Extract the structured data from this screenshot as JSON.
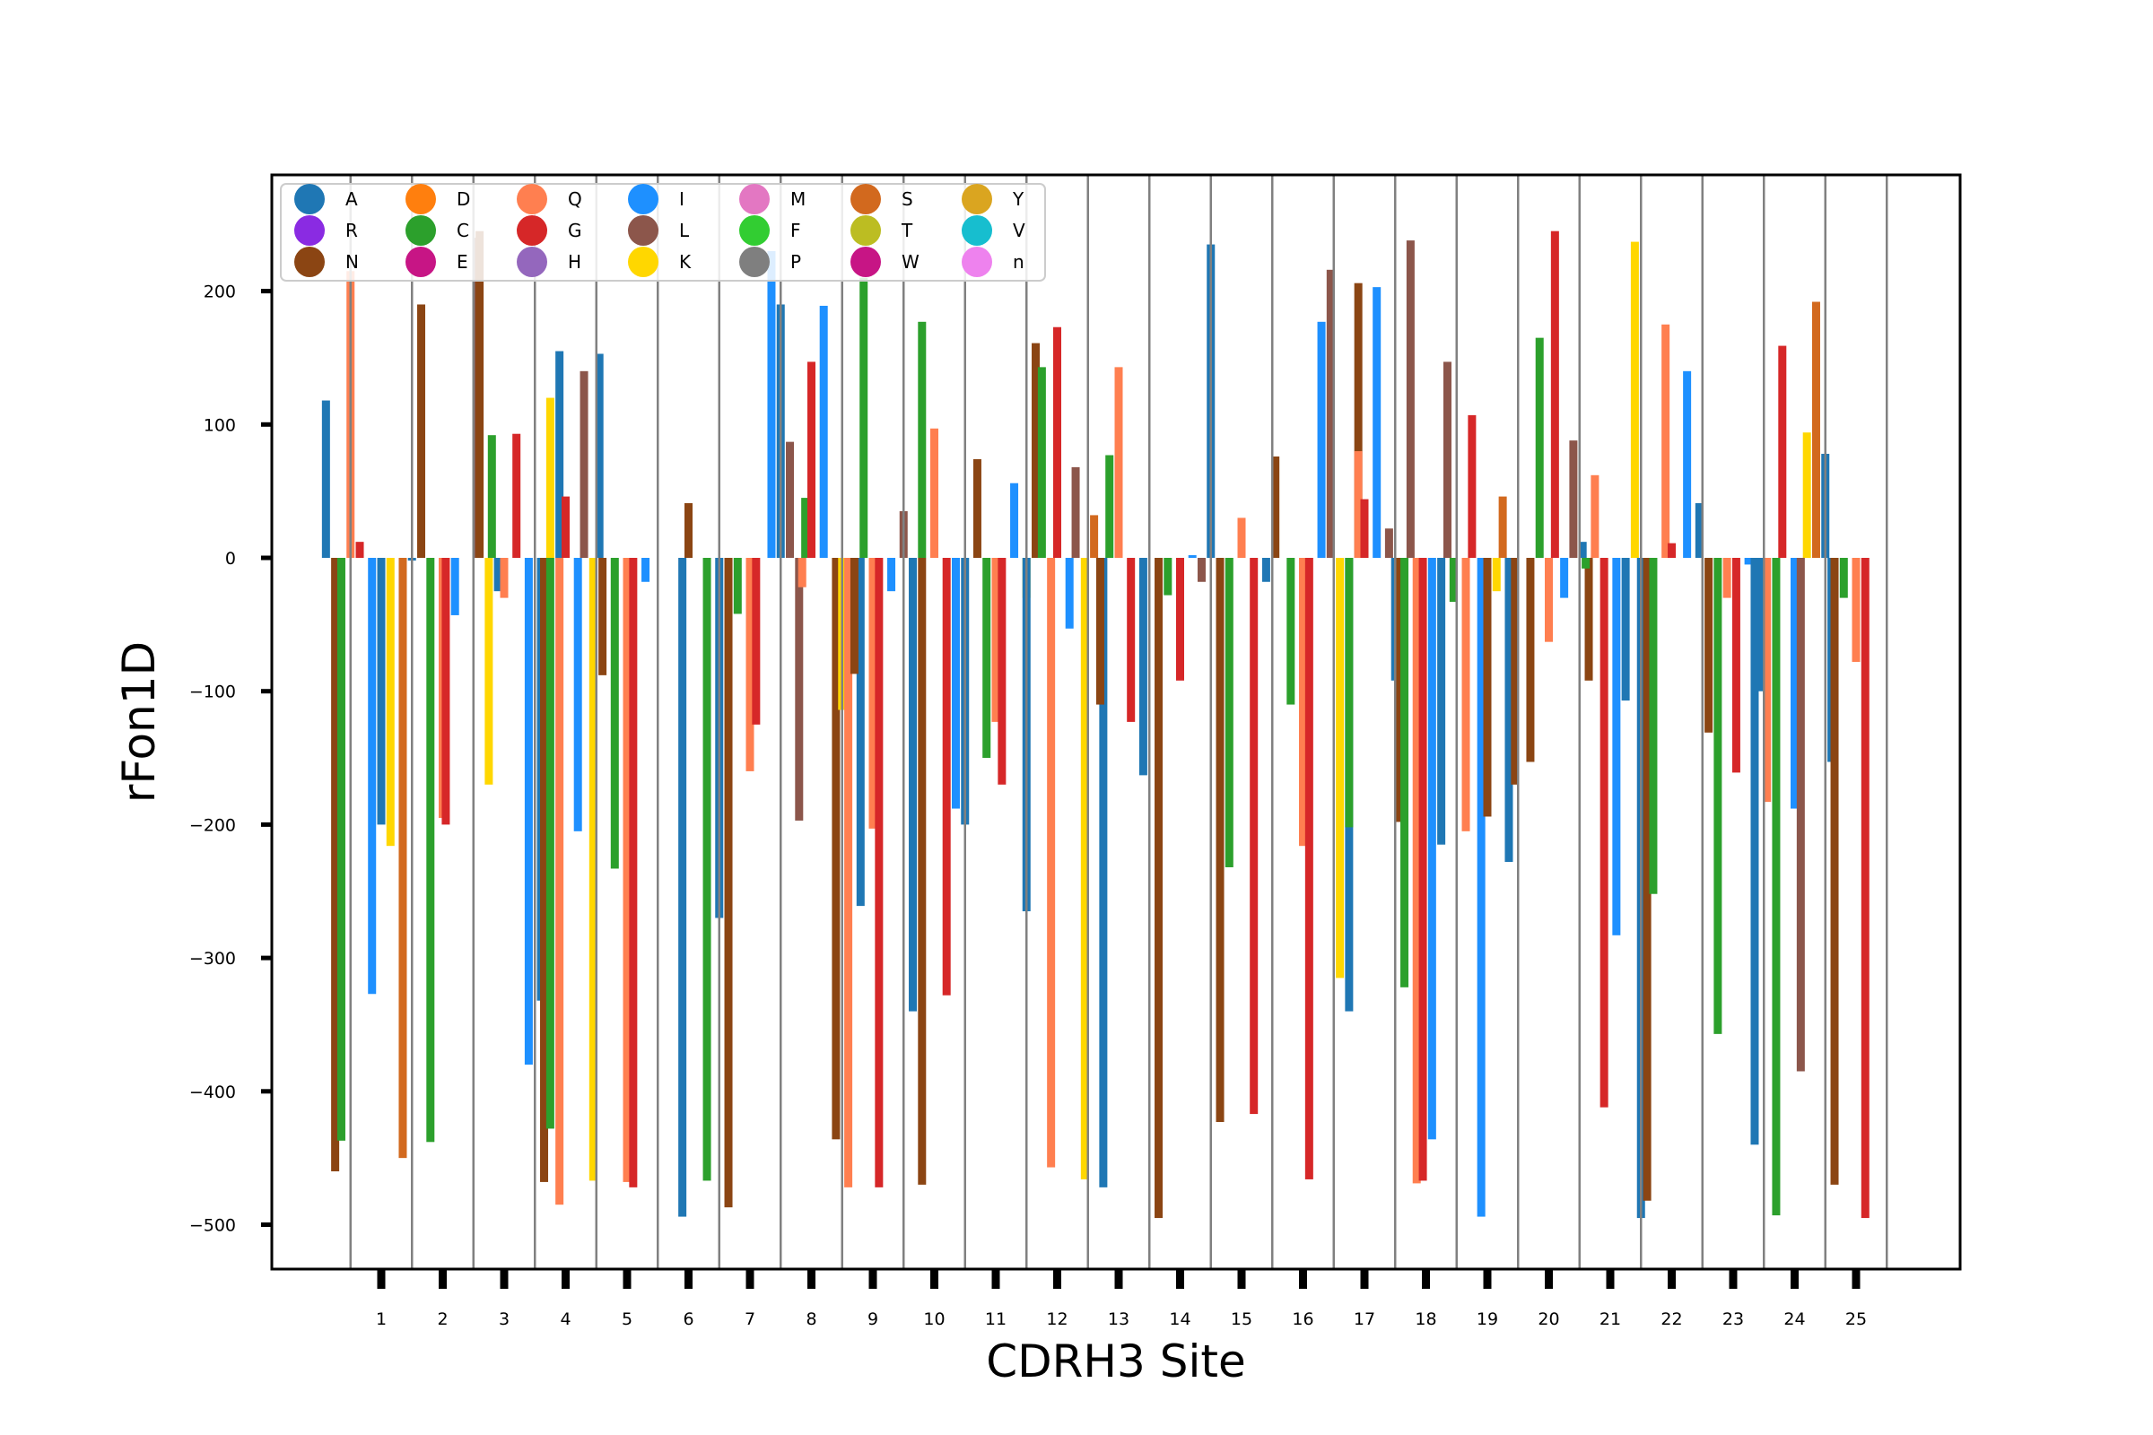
{
  "chart_data": {
    "type": "bar",
    "xlabel": "CDRH3 Site",
    "ylabel": "rFon1D",
    "ylim": [
      -533,
      287
    ],
    "yticks": [
      200,
      100,
      0,
      -100,
      -200,
      -300,
      -400,
      -500
    ],
    "sites": [
      1,
      2,
      3,
      4,
      5,
      6,
      7,
      8,
      9,
      10,
      11,
      12,
      13,
      14,
      15,
      16,
      17,
      18,
      19,
      20,
      21,
      22,
      23,
      24,
      25
    ],
    "grid": "vertical separators between sites",
    "legend": {
      "placement": "upper-left",
      "entries": [
        {
          "label": "A",
          "color": "#1f77b4"
        },
        {
          "label": "R",
          "color": "#8a2be2"
        },
        {
          "label": "N",
          "color": "#8b4513"
        },
        {
          "label": "D",
          "color": "#ff7f0e"
        },
        {
          "label": "C",
          "color": "#2ca02c"
        },
        {
          "label": "E",
          "color": "#c71585"
        },
        {
          "label": "Q",
          "color": "#ff7f50"
        },
        {
          "label": "G",
          "color": "#d62728"
        },
        {
          "label": "H",
          "color": "#9467bd"
        },
        {
          "label": "I",
          "color": "#1e90ff"
        },
        {
          "label": "L",
          "color": "#8c564b"
        },
        {
          "label": "K",
          "color": "#ffd700"
        },
        {
          "label": "M",
          "color": "#e377c2"
        },
        {
          "label": "F",
          "color": "#32cd32"
        },
        {
          "label": "P",
          "color": "#7f7f7f"
        },
        {
          "label": "S",
          "color": "#d2691e"
        },
        {
          "label": "T",
          "color": "#bcbd22"
        },
        {
          "label": "W",
          "color": "#c71585"
        },
        {
          "label": "Y",
          "color": "#daa520"
        },
        {
          "label": "V",
          "color": "#17becf"
        },
        {
          "label": "n",
          "color": "#ee82ee"
        }
      ]
    },
    "bars": [
      [
        [
          -0.9,
          "A",
          118
        ],
        [
          -0.75,
          "N",
          -460
        ],
        [
          -0.65,
          "C",
          -437
        ],
        [
          -0.5,
          "Q",
          215
        ],
        [
          -0.35,
          "G",
          12
        ],
        [
          -0.15,
          "I",
          -327
        ],
        [
          0.0,
          "A",
          -200
        ],
        [
          0.15,
          "K",
          -216
        ],
        [
          0.35,
          "S",
          -450
        ],
        [
          0.5,
          "A",
          -2
        ]
      ],
      [
        [
          -0.35,
          "N",
          190
        ],
        [
          -0.2,
          "C",
          -438
        ],
        [
          0.0,
          "Q",
          -195
        ],
        [
          0.05,
          "G",
          -200
        ],
        [
          0.2,
          "I",
          -43
        ],
        [
          0.55,
          "L",
          240
        ],
        [
          0.75,
          "K",
          -170
        ],
        [
          0.9,
          "A",
          -25
        ]
      ],
      [
        [
          -0.4,
          "N",
          245
        ],
        [
          -0.2,
          "C",
          92
        ],
        [
          0.0,
          "Q",
          -30
        ],
        [
          0.2,
          "G",
          93
        ],
        [
          0.4,
          "I",
          -380
        ],
        [
          0.6,
          "A",
          -332
        ],
        [
          0.75,
          "K",
          120
        ],
        [
          0.9,
          "A",
          155
        ]
      ],
      [
        [
          -0.35,
          "N",
          -468
        ],
        [
          -0.25,
          "C",
          -428
        ],
        [
          -0.1,
          "Q",
          -485
        ],
        [
          0.0,
          "G",
          46
        ],
        [
          0.2,
          "I",
          -205
        ],
        [
          0.3,
          "L",
          140
        ],
        [
          0.45,
          "K",
          -467
        ],
        [
          0.55,
          "A",
          153
        ]
      ],
      [
        [
          -0.4,
          "N",
          -88
        ],
        [
          -0.2,
          "C",
          -233
        ],
        [
          0.0,
          "Q",
          -468
        ],
        [
          0.1,
          "G",
          -472
        ],
        [
          0.3,
          "I",
          -18
        ]
      ],
      [
        [
          -0.1,
          "A",
          -494
        ],
        [
          0.0,
          "N",
          41
        ],
        [
          0.3,
          "C",
          -467
        ]
      ],
      [
        [
          -0.5,
          "A",
          -270
        ],
        [
          -0.35,
          "N",
          -487
        ],
        [
          -0.2,
          "C",
          -42
        ],
        [
          0.0,
          "Q",
          -160
        ],
        [
          0.1,
          "G",
          -125
        ],
        [
          0.35,
          "I",
          230
        ],
        [
          0.5,
          "A",
          190
        ],
        [
          0.65,
          "L",
          87
        ],
        [
          0.8,
          "L",
          -197
        ],
        [
          0.9,
          "C",
          45
        ]
      ],
      [
        [
          -0.15,
          "Q",
          -22
        ],
        [
          0.0,
          "G",
          147
        ],
        [
          0.2,
          "I",
          189
        ],
        [
          0.4,
          "N",
          -436
        ],
        [
          0.5,
          "K",
          -114
        ],
        [
          0.6,
          "Q",
          -472
        ],
        [
          0.8,
          "A",
          -261
        ]
      ],
      [
        [
          -0.3,
          "N",
          -87
        ],
        [
          -0.15,
          "C",
          210
        ],
        [
          0.0,
          "Q",
          -203
        ],
        [
          0.1,
          "G",
          -472
        ],
        [
          0.3,
          "I",
          -25
        ],
        [
          0.5,
          "L",
          35
        ],
        [
          0.65,
          "A",
          -340
        ],
        [
          0.8,
          "N",
          -470
        ]
      ],
      [
        [
          -0.2,
          "C",
          177
        ],
        [
          0.0,
          "Q",
          97
        ],
        [
          0.2,
          "G",
          -328
        ],
        [
          0.35,
          "I",
          -188
        ],
        [
          0.5,
          "A",
          -200
        ]
      ],
      [
        [
          -0.3,
          "N",
          74
        ],
        [
          -0.15,
          "C",
          -150
        ],
        [
          0.0,
          "Q",
          -123
        ],
        [
          0.1,
          "G",
          -170
        ],
        [
          0.3,
          "I",
          56
        ],
        [
          0.5,
          "K",
          -30
        ]
      ],
      [
        [
          -0.5,
          "A",
          -265
        ],
        [
          -0.35,
          "N",
          161
        ],
        [
          -0.25,
          "C",
          143
        ],
        [
          -0.1,
          "Q",
          -457
        ],
        [
          0.0,
          "G",
          173
        ],
        [
          0.2,
          "I",
          -53
        ],
        [
          0.3,
          "L",
          68
        ],
        [
          0.45,
          "K",
          -466
        ],
        [
          0.6,
          "S",
          32
        ],
        [
          0.75,
          "A",
          -472
        ]
      ],
      [
        [
          -0.3,
          "N",
          -110
        ],
        [
          -0.15,
          "C",
          77
        ],
        [
          0.0,
          "Q",
          143
        ],
        [
          0.2,
          "G",
          -123
        ],
        [
          0.4,
          "A",
          -163
        ]
      ],
      [
        [
          -0.35,
          "N",
          -495
        ],
        [
          -0.2,
          "C",
          -28
        ],
        [
          0.0,
          "G",
          -92
        ],
        [
          0.2,
          "I",
          2
        ],
        [
          0.35,
          "L",
          -18
        ],
        [
          0.5,
          "A",
          235
        ]
      ],
      [
        [
          -0.35,
          "N",
          -423
        ],
        [
          -0.2,
          "C",
          -232
        ],
        [
          0.0,
          "Q",
          30
        ],
        [
          0.2,
          "G",
          -417
        ],
        [
          0.4,
          "A",
          -18
        ],
        [
          0.55,
          "N",
          76
        ]
      ],
      [
        [
          -0.2,
          "C",
          -110
        ],
        [
          0.0,
          "Q",
          -216
        ],
        [
          0.1,
          "G",
          -466
        ],
        [
          0.3,
          "I",
          177
        ],
        [
          0.45,
          "L",
          216
        ],
        [
          0.6,
          "K",
          -315
        ],
        [
          0.75,
          "A",
          -340
        ],
        [
          0.9,
          "N",
          206
        ]
      ],
      [
        [
          -0.25,
          "C",
          -202
        ],
        [
          -0.1,
          "Q",
          80
        ],
        [
          0.0,
          "G",
          44
        ],
        [
          0.2,
          "I",
          203
        ],
        [
          0.4,
          "L",
          22
        ],
        [
          0.5,
          "A",
          -92
        ]
      ],
      [
        [
          -0.45,
          "N",
          -198
        ],
        [
          -0.35,
          "C",
          -322
        ],
        [
          -0.25,
          "L",
          238
        ],
        [
          -0.15,
          "Q",
          -469
        ],
        [
          -0.05,
          "G",
          -467
        ],
        [
          0.1,
          "I",
          -436
        ],
        [
          0.25,
          "A",
          -215
        ],
        [
          0.35,
          "L",
          147
        ],
        [
          0.45,
          "C",
          -33
        ]
      ],
      [
        [
          -0.35,
          "Q",
          -205
        ],
        [
          -0.25,
          "G",
          107
        ],
        [
          -0.1,
          "I",
          -494
        ],
        [
          0.0,
          "N",
          -194
        ],
        [
          0.15,
          "K",
          -25
        ],
        [
          0.25,
          "S",
          46
        ],
        [
          0.35,
          "A",
          -228
        ],
        [
          0.45,
          "N",
          -170
        ]
      ],
      [
        [
          -0.3,
          "N",
          -153
        ],
        [
          -0.15,
          "C",
          165
        ],
        [
          0.0,
          "Q",
          -63
        ],
        [
          0.1,
          "G",
          245
        ],
        [
          0.25,
          "I",
          -30
        ],
        [
          0.4,
          "L",
          88
        ],
        [
          0.55,
          "A",
          12
        ],
        [
          0.65,
          "N",
          -92
        ]
      ],
      [
        [
          -0.4,
          "C",
          -8
        ],
        [
          -0.25,
          "Q",
          62
        ],
        [
          -0.1,
          "G",
          -412
        ],
        [
          0.1,
          "I",
          -283
        ],
        [
          0.25,
          "A",
          -107
        ],
        [
          0.4,
          "K",
          237
        ],
        [
          0.5,
          "A",
          -495
        ]
      ],
      [
        [
          -0.4,
          "N",
          -482
        ],
        [
          -0.3,
          "C",
          -252
        ],
        [
          -0.1,
          "Q",
          175
        ],
        [
          0.0,
          "G",
          11
        ],
        [
          0.25,
          "I",
          140
        ],
        [
          0.45,
          "A",
          41
        ]
      ],
      [
        [
          -0.4,
          "N",
          -131
        ],
        [
          -0.25,
          "C",
          -357
        ],
        [
          -0.1,
          "Q",
          -30
        ],
        [
          0.05,
          "G",
          -161
        ],
        [
          0.25,
          "I",
          -5
        ],
        [
          0.35,
          "A",
          -440
        ],
        [
          0.45,
          "A",
          -100
        ]
      ],
      [
        [
          -0.45,
          "Q",
          -183
        ],
        [
          -0.3,
          "C",
          -493
        ],
        [
          -0.2,
          "G",
          159
        ],
        [
          0.0,
          "I",
          -188
        ],
        [
          0.1,
          "L",
          -385
        ],
        [
          0.2,
          "K",
          94
        ],
        [
          0.35,
          "S",
          192
        ],
        [
          0.5,
          "A",
          78
        ],
        [
          0.6,
          "A",
          -153
        ]
      ],
      [
        [
          -0.35,
          "N",
          -470
        ],
        [
          -0.2,
          "C",
          -30
        ],
        [
          0.0,
          "Q",
          -78
        ],
        [
          0.15,
          "G",
          -495
        ]
      ]
    ]
  }
}
